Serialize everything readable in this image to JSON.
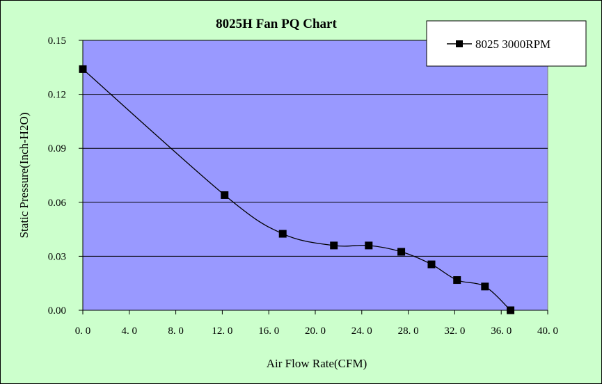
{
  "colors": {
    "chart_background": "#ccffcc",
    "plot_area": "#9999ff",
    "gridline": "#000000",
    "series_line": "#000000",
    "legend_background": "#ffffff"
  },
  "chart_data": {
    "type": "line",
    "title": "8025H  Fan PQ Chart",
    "xlabel": "Air Flow Rate(CFM)",
    "ylabel": "Static Pressure(Inch-H2O)",
    "xlim": [
      0,
      40
    ],
    "ylim": [
      0,
      0.15
    ],
    "x_ticks": [
      0,
      4,
      8,
      12,
      16,
      20,
      24,
      28,
      32,
      36,
      40
    ],
    "x_tick_labels": [
      "0. 0",
      "4. 0",
      "8. 0",
      "12. 0",
      "16. 0",
      "20. 0",
      "24. 0",
      "28. 0",
      "32. 0",
      "36. 0",
      "40. 0"
    ],
    "y_ticks": [
      0,
      0.03,
      0.06,
      0.09,
      0.12,
      0.15
    ],
    "y_tick_labels": [
      "0.00",
      "0.03",
      "0.06",
      "0.09",
      "0.12",
      "0.15"
    ],
    "grid": "horizontal",
    "legend_position": "top-right",
    "series": [
      {
        "name": "8025  3000RPM",
        "marker": "square",
        "points": [
          {
            "x": 0.0,
            "y": 0.134
          },
          {
            "x": 12.2,
            "y": 0.064
          },
          {
            "x": 17.2,
            "y": 0.0425
          },
          {
            "x": 21.6,
            "y": 0.036
          },
          {
            "x": 24.6,
            "y": 0.036
          },
          {
            "x": 27.4,
            "y": 0.0325
          },
          {
            "x": 30.0,
            "y": 0.0255
          },
          {
            "x": 32.2,
            "y": 0.0168
          },
          {
            "x": 34.6,
            "y": 0.0132
          },
          {
            "x": 36.8,
            "y": 0.0
          }
        ]
      }
    ]
  }
}
